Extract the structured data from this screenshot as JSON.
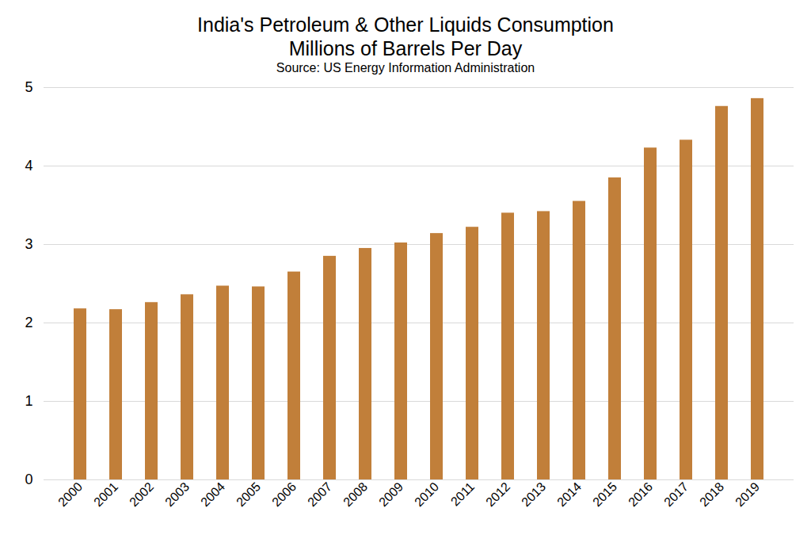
{
  "chart_data": {
    "type": "bar",
    "title": "India's Petroleum & Other Liquids Consumption",
    "subtitle": "Millions of Barrels Per Day",
    "caption": "Source: US Energy Information Administration",
    "categories": [
      "2000",
      "2001",
      "2002",
      "2003",
      "2004",
      "2005",
      "2006",
      "2007",
      "2008",
      "2009",
      "2010",
      "2011",
      "2012",
      "2013",
      "2014",
      "2015",
      "2016",
      "2017",
      "2018",
      "2019"
    ],
    "values": [
      2.18,
      2.17,
      2.26,
      2.36,
      2.47,
      2.46,
      2.65,
      2.85,
      2.95,
      3.02,
      3.14,
      3.22,
      3.4,
      3.42,
      3.55,
      3.85,
      4.23,
      4.33,
      4.76,
      4.86
    ],
    "color": "#c17f3a",
    "ylim": [
      0,
      5
    ],
    "yticks": [
      0,
      1,
      2,
      3,
      4,
      5
    ],
    "grid": true
  }
}
